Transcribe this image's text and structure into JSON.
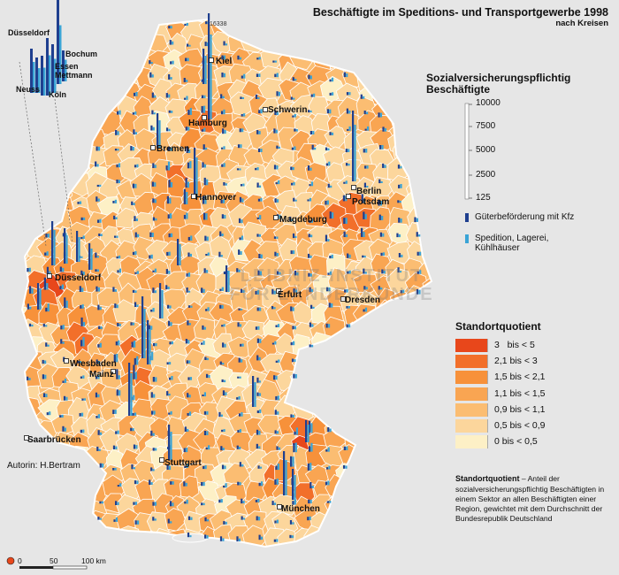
{
  "title": "Beschäftigte im Speditions- und Transportgewerbe 1998",
  "subtitle": "nach Kreisen",
  "employees_legend": {
    "title": "Sozialversicherungspflichtig Beschäftigte",
    "scale_values": [
      "10000",
      "7500",
      "5000",
      "2500",
      "125"
    ],
    "symbols": [
      {
        "label": "Güterbeförderung mit Kfz",
        "color": "#1f3f8f"
      },
      {
        "label": "Spedition, Lagerei, Kühlhäuser",
        "color": "#3aa4d6"
      }
    ]
  },
  "standortquotient": {
    "title": "Standortquotient",
    "classes": [
      {
        "label": "3   bis < 5",
        "color": "#e8471b"
      },
      {
        "label": "2,1 bis < 3",
        "color": "#f26f2a"
      },
      {
        "label": "1,5 bis < 2,1",
        "color": "#f7913a"
      },
      {
        "label": "1,1 bis < 1,5",
        "color": "#f9a552"
      },
      {
        "label": "0,9 bis < 1,1",
        "color": "#fbbd72"
      },
      {
        "label": "0,5 bis < 0,9",
        "color": "#fcd69c"
      },
      {
        "label": "0 bis < 0,5",
        "color": "#fdf0c6"
      }
    ]
  },
  "note": {
    "bold": "Standortquotient",
    "text": " – Anteil der sozialversicherungspflichtig Beschäftigten in einem Sektor an allen Beschäftigten einer Region, gewichtet mit dem Durchschnitt der Bundesrepublik Deutschland"
  },
  "author": "Autorin:  H.Bertram",
  "peak_label": "16338",
  "scale_bar": {
    "labels": [
      "0",
      "50",
      "100 km"
    ]
  },
  "watermark": "LEIBNIZ-INSTITUT FÜR LÄNDERKUNDE",
  "cities": [
    {
      "name": "Kiel"
    },
    {
      "name": "Hamburg"
    },
    {
      "name": "Schwerin"
    },
    {
      "name": "Bremen"
    },
    {
      "name": "Hannover"
    },
    {
      "name": "Berlin"
    },
    {
      "name": "Potsdam"
    },
    {
      "name": "Magdeburg"
    },
    {
      "name": "Düsseldorf"
    },
    {
      "name": "Erfurt"
    },
    {
      "name": "Dresden"
    },
    {
      "name": "Wiesbaden"
    },
    {
      "name": "Mainz"
    },
    {
      "name": "Saarbrücken"
    },
    {
      "name": "Stuttgart"
    },
    {
      "name": "München"
    }
  ],
  "inset": {
    "cities": [
      {
        "name": "Düsseldorf"
      },
      {
        "name": "Bochum"
      },
      {
        "name": "Essen"
      },
      {
        "name": "Mettmann"
      },
      {
        "name": "Neuss"
      },
      {
        "name": "Köln"
      }
    ]
  },
  "colors": {
    "background": "#e6e6e6",
    "border": "#ffffff"
  }
}
